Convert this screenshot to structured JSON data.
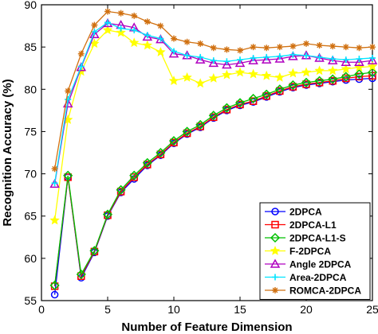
{
  "chart_data": {
    "type": "line",
    "xlabel": "Number of Feature Dimension",
    "ylabel": "Recognition Accuracy (%)",
    "xlim": [
      0,
      25
    ],
    "ylim": [
      55,
      90
    ],
    "xticks": [
      0,
      5,
      10,
      15,
      20,
      25
    ],
    "yticks": [
      55,
      60,
      65,
      70,
      75,
      80,
      85,
      90
    ],
    "grid": false,
    "legend_position": "bottom-right",
    "x": [
      1,
      2,
      3,
      4,
      5,
      6,
      7,
      8,
      9,
      10,
      11,
      12,
      13,
      14,
      15,
      16,
      17,
      18,
      19,
      20,
      21,
      22,
      23,
      24,
      25
    ],
    "series": [
      {
        "name": "2DPCA",
        "color": "#0000ff",
        "marker": "circle",
        "values": [
          55.7,
          69.6,
          57.7,
          60.7,
          65.0,
          67.8,
          69.4,
          71.0,
          72.2,
          73.6,
          74.7,
          75.5,
          76.6,
          77.5,
          78.1,
          78.5,
          79.1,
          79.7,
          80.2,
          80.5,
          80.7,
          80.9,
          81.1,
          81.2,
          81.3
        ]
      },
      {
        "name": "2DPCA-L1",
        "color": "#ff0000",
        "marker": "square",
        "values": [
          56.7,
          69.6,
          57.9,
          60.8,
          65.1,
          67.9,
          69.6,
          71.1,
          72.3,
          73.7,
          74.8,
          75.6,
          76.7,
          77.6,
          78.2,
          78.6,
          79.2,
          79.8,
          80.3,
          80.6,
          80.8,
          81.0,
          81.3,
          81.5,
          81.6
        ]
      },
      {
        "name": "2DPCA-L1-S",
        "color": "#00c000",
        "marker": "diamond",
        "values": [
          56.8,
          69.8,
          58.1,
          60.9,
          65.2,
          68.1,
          69.8,
          71.3,
          72.5,
          73.9,
          75.0,
          75.8,
          76.9,
          77.8,
          78.4,
          78.9,
          79.4,
          80.0,
          80.5,
          80.8,
          81.0,
          81.2,
          81.5,
          81.8,
          82.0
        ]
      },
      {
        "name": "F-2DPCA",
        "color": "#ffff00",
        "marker": "star",
        "values": [
          64.5,
          76.4,
          82.1,
          85.4,
          87.0,
          86.7,
          85.5,
          85.2,
          84.4,
          81.0,
          81.4,
          80.7,
          81.3,
          81.7,
          82.0,
          81.8,
          81.6,
          81.4,
          81.9,
          82.0,
          82.2,
          82.2,
          82.4,
          82.6,
          82.7
        ]
      },
      {
        "name": "Angle 2DPCA",
        "color": "#b000c0",
        "marker": "triangle",
        "values": [
          68.8,
          78.3,
          82.6,
          86.5,
          87.8,
          87.6,
          87.3,
          86.2,
          85.9,
          84.2,
          84.0,
          83.5,
          83.1,
          82.9,
          83.1,
          83.4,
          83.5,
          83.6,
          83.9,
          84.0,
          83.7,
          83.4,
          83.2,
          83.2,
          83.4
        ]
      },
      {
        "name": "Area-2DPCA",
        "color": "#00e5ff",
        "marker": "plus",
        "values": [
          68.9,
          78.8,
          82.7,
          86.8,
          87.9,
          87.2,
          87.0,
          86.4,
          86.0,
          84.5,
          84.0,
          83.8,
          83.4,
          83.3,
          83.5,
          83.7,
          83.8,
          83.9,
          84.1,
          84.0,
          83.8,
          83.6,
          83.5,
          83.6,
          83.7
        ]
      },
      {
        "name": "ROMCA-2DPCA",
        "color": "#d07010",
        "marker": "asterisk",
        "values": [
          70.6,
          79.8,
          84.2,
          87.6,
          89.2,
          89.0,
          88.7,
          88.0,
          87.5,
          86.0,
          85.6,
          85.4,
          84.9,
          84.7,
          84.6,
          85.0,
          84.9,
          85.0,
          85.1,
          85.4,
          85.2,
          85.1,
          85.0,
          84.9,
          85.0
        ]
      }
    ]
  }
}
